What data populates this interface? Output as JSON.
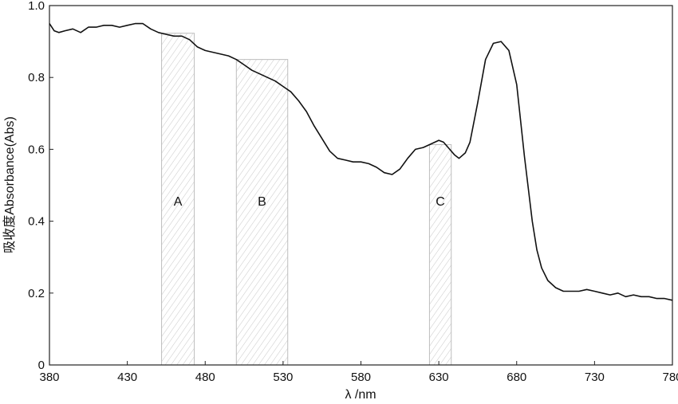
{
  "chart_data": {
    "type": "line",
    "xlabel": "λ /nm",
    "ylabel": "吸收度Absorbance(Abs)",
    "xlim": [
      380,
      780
    ],
    "ylim": [
      0,
      1.0
    ],
    "xticks": [
      380,
      430,
      480,
      530,
      580,
      630,
      680,
      730,
      780
    ],
    "yticks": [
      0,
      0.2,
      0.4,
      0.6,
      0.8,
      1.0
    ],
    "ytick_labels": [
      "0",
      "0.2",
      "0.4",
      "0.6",
      "0.8",
      "1.0"
    ],
    "grid": false,
    "bands": [
      {
        "label": "A",
        "x_start": 452,
        "x_end": 473
      },
      {
        "label": "B",
        "x_start": 500,
        "x_end": 533
      },
      {
        "label": "C",
        "x_start": 624,
        "x_end": 638
      }
    ],
    "series": [
      {
        "x": [
          380,
          383,
          386,
          390,
          395,
          400,
          405,
          410,
          415,
          420,
          425,
          430,
          435,
          440,
          445,
          450,
          455,
          460,
          465,
          470,
          475,
          480,
          485,
          490,
          495,
          500,
          505,
          510,
          515,
          520,
          525,
          530,
          535,
          540,
          545,
          550,
          555,
          560,
          565,
          570,
          575,
          580,
          585,
          590,
          595,
          600,
          605,
          610,
          615,
          620,
          625,
          630,
          633,
          637,
          640,
          643,
          647,
          650,
          655,
          660,
          665,
          670,
          675,
          680,
          685,
          690,
          693,
          696,
          700,
          705,
          710,
          715,
          720,
          725,
          730,
          735,
          740,
          745,
          750,
          755,
          760,
          765,
          770,
          775,
          780
        ],
        "values": [
          0.95,
          0.93,
          0.925,
          0.93,
          0.935,
          0.925,
          0.94,
          0.94,
          0.945,
          0.945,
          0.94,
          0.945,
          0.95,
          0.95,
          0.935,
          0.925,
          0.92,
          0.915,
          0.915,
          0.905,
          0.885,
          0.875,
          0.87,
          0.865,
          0.86,
          0.85,
          0.835,
          0.82,
          0.81,
          0.8,
          0.79,
          0.775,
          0.76,
          0.735,
          0.705,
          0.665,
          0.63,
          0.595,
          0.575,
          0.57,
          0.565,
          0.565,
          0.56,
          0.55,
          0.535,
          0.53,
          0.545,
          0.575,
          0.6,
          0.605,
          0.615,
          0.625,
          0.62,
          0.6,
          0.585,
          0.575,
          0.59,
          0.62,
          0.73,
          0.85,
          0.895,
          0.9,
          0.875,
          0.78,
          0.58,
          0.4,
          0.32,
          0.27,
          0.235,
          0.215,
          0.205,
          0.205,
          0.205,
          0.21,
          0.205,
          0.2,
          0.195,
          0.2,
          0.19,
          0.195,
          0.19,
          0.19,
          0.185,
          0.185,
          0.18
        ]
      }
    ]
  }
}
